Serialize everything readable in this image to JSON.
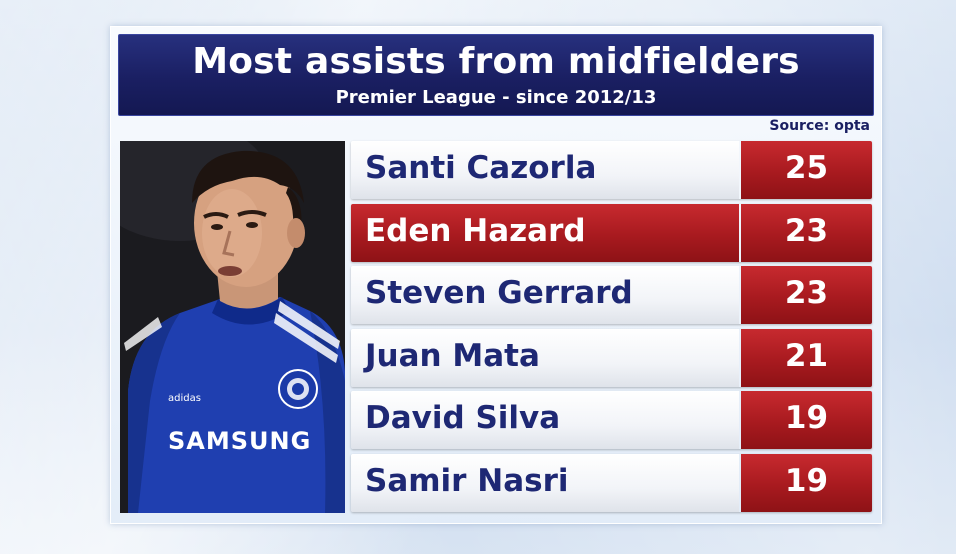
{
  "header": {
    "title": "Most assists from midfielders",
    "subtitle": "Premier League - since 2012/13"
  },
  "source": "Source: opta",
  "colors": {
    "navy": "#1a1f62",
    "red": "#a81a1f",
    "row_text": "#1e2874"
  },
  "photo": {
    "alt": "Eden Hazard in blue Chelsea kit",
    "shirt_sponsor": "SAMSUNG",
    "brand": "adidas"
  },
  "rows": [
    {
      "name": "Santi Cazorla",
      "value": "25",
      "highlight": false
    },
    {
      "name": "Eden Hazard",
      "value": "23",
      "highlight": true
    },
    {
      "name": "Steven Gerrard",
      "value": "23",
      "highlight": false
    },
    {
      "name": "Juan Mata",
      "value": "21",
      "highlight": false
    },
    {
      "name": "David Silva",
      "value": "19",
      "highlight": false
    },
    {
      "name": "Samir Nasri",
      "value": "19",
      "highlight": false
    }
  ]
}
